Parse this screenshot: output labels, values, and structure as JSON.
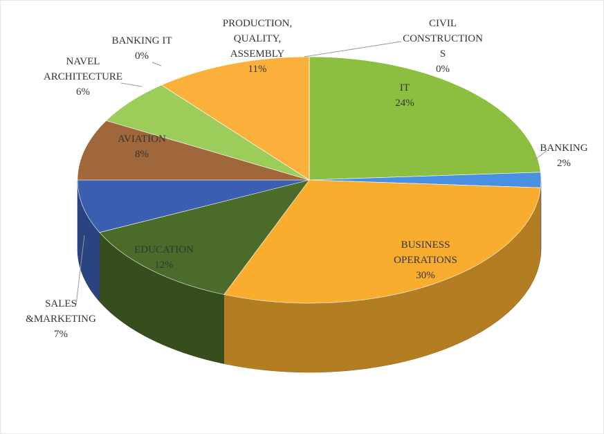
{
  "chart_data": {
    "type": "pie",
    "three_d": true,
    "categories": [
      "IT",
      "BANKING",
      "BUSINESS\nOPERATIONS",
      "EDUCATION",
      "SALES\n&MARKETING",
      "AVIATION",
      "NAVEL\nARCHITECTURE",
      "BANKING IT",
      "PRODUCTION,\nQUALITY,\nASSEMBLY",
      "CIVIL\nCONSTRUCTION\nS"
    ],
    "values": [
      24,
      2,
      30,
      12,
      7,
      8,
      6,
      0,
      11,
      0
    ],
    "value_labels": [
      "24%",
      "2%",
      "30%",
      "12%",
      "7%",
      "8%",
      "6%",
      "0%",
      "11%",
      "0%"
    ],
    "colors": [
      "#8cbf3f",
      "#4a90e2",
      "#f9ad2e",
      "#4b6b2a",
      "#3a5fb0",
      "#a0673a",
      "#9ccc5a",
      "#5b9bd5",
      "#fbb03b",
      "#4f7a2f"
    ]
  }
}
